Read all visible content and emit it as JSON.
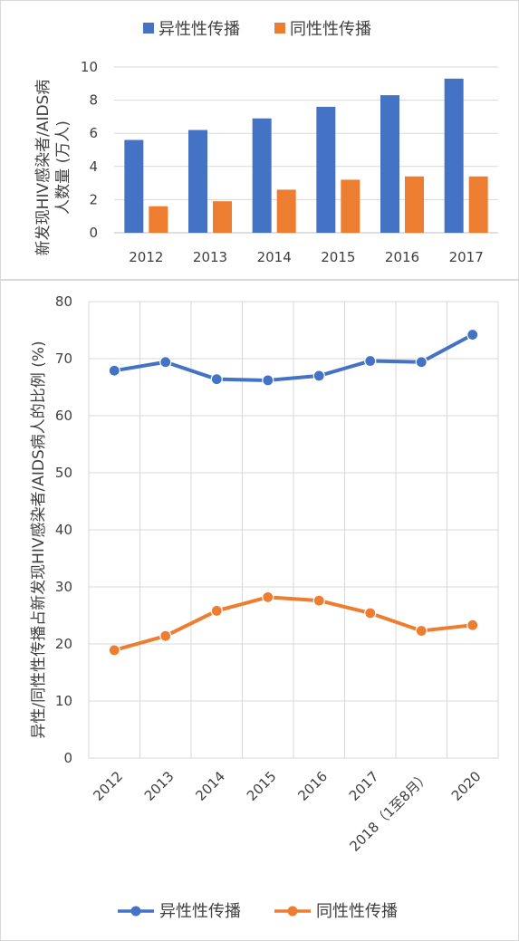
{
  "chart_data": [
    {
      "type": "bar",
      "ylabel_line1": "新发现HIV感染者/AIDS病",
      "ylabel_line2": "人数量 (万人)",
      "ylim": [
        0,
        10
      ],
      "yticks": [
        0,
        2,
        4,
        6,
        8,
        10
      ],
      "grid": true,
      "legend_position": "top",
      "categories": [
        "2012",
        "2013",
        "2014",
        "2015",
        "2016",
        "2017"
      ],
      "series": [
        {
          "name": "异性性传播",
          "color": "#4472C4",
          "values": [
            5.6,
            6.2,
            6.9,
            7.6,
            8.3,
            9.3
          ]
        },
        {
          "name": "同性性传播",
          "color": "#ED7D31",
          "values": [
            1.6,
            1.9,
            2.6,
            3.2,
            3.4,
            3.4
          ]
        }
      ]
    },
    {
      "type": "line",
      "ylabel": "异性/同性性传播占新发现HIV感染者/AIDS病人的比例 (%)",
      "ylim": [
        0,
        80
      ],
      "yticks": [
        0,
        10,
        20,
        30,
        40,
        50,
        60,
        70,
        80
      ],
      "grid": true,
      "legend_position": "bottom",
      "categories": [
        "2012",
        "2013",
        "2014",
        "2015",
        "2016",
        "2017",
        "2018（1至8月）",
        "2020"
      ],
      "series": [
        {
          "name": "异性性传播",
          "color": "#4472C4",
          "values": [
            67.9,
            69.4,
            66.4,
            66.2,
            67.0,
            69.6,
            69.4,
            74.2
          ]
        },
        {
          "name": "同性性传播",
          "color": "#ED7D31",
          "values": [
            18.9,
            21.4,
            25.8,
            28.2,
            27.6,
            25.4,
            22.3,
            23.3
          ]
        }
      ]
    }
  ]
}
